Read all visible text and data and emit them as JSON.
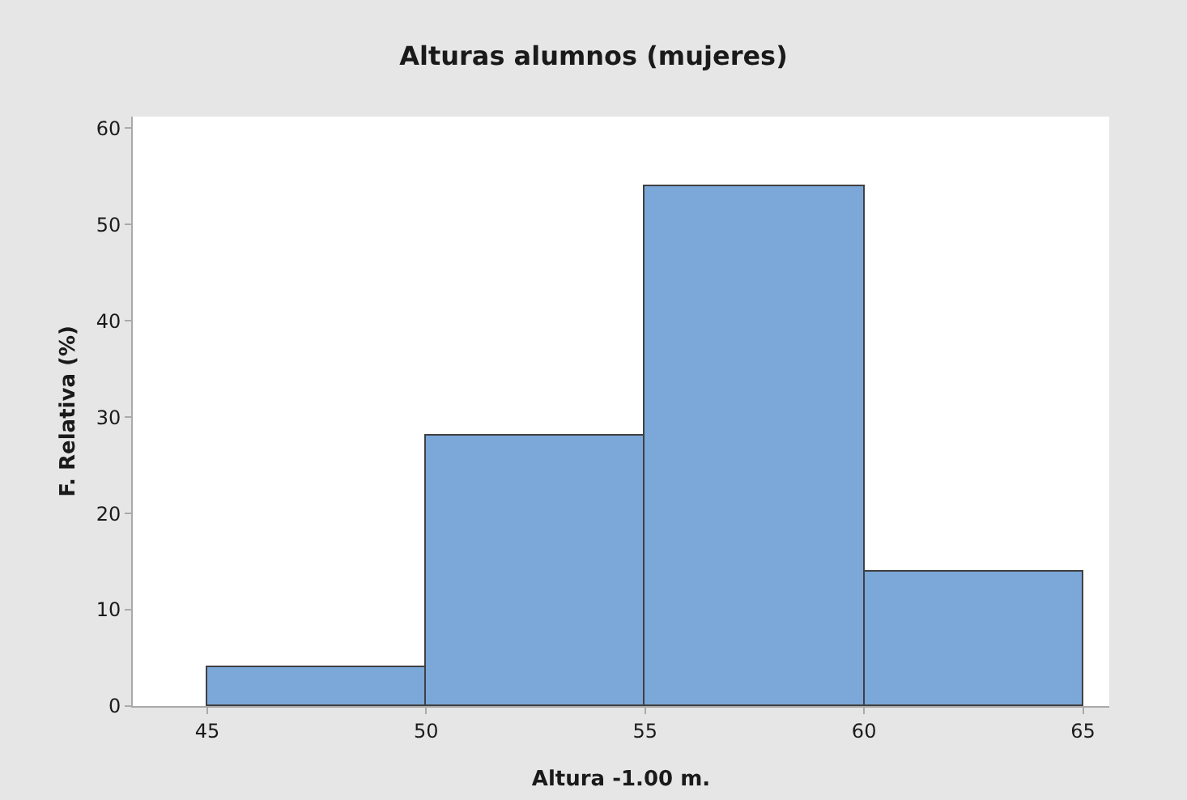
{
  "chart_data": {
    "type": "histogram",
    "title": "Alturas alumnos (mujeres)",
    "xlabel": "Altura -1.00 m.",
    "ylabel": "F. Relativa (%)",
    "bins": [
      45,
      50,
      55,
      60,
      65
    ],
    "values": [
      4,
      28,
      54,
      14
    ],
    "color": "#7ba7d9",
    "xlim": [
      43.3,
      65.6
    ],
    "xticks": [
      45,
      50,
      55,
      60,
      65
    ],
    "ylim": [
      0,
      61.2
    ],
    "yticks": [
      0,
      10,
      20,
      30,
      40,
      50,
      60
    ],
    "grid": false,
    "legend": false
  }
}
